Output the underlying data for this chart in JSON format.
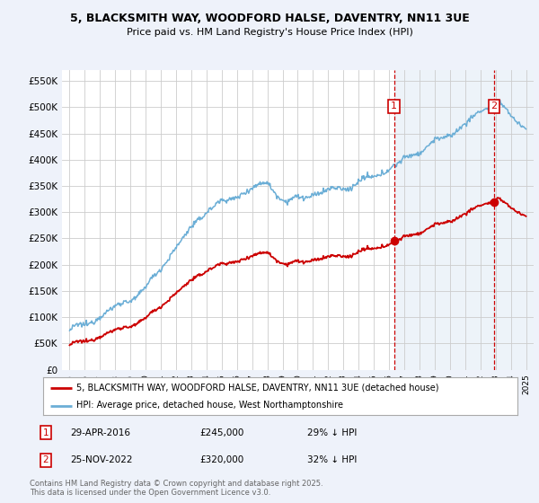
{
  "title1": "5, BLACKSMITH WAY, WOODFORD HALSE, DAVENTRY, NN11 3UE",
  "title2": "Price paid vs. HM Land Registry's House Price Index (HPI)",
  "ytick_vals": [
    0,
    50000,
    100000,
    150000,
    200000,
    250000,
    300000,
    350000,
    400000,
    450000,
    500000,
    550000
  ],
  "ylim": [
    0,
    570000
  ],
  "hpi_color": "#6baed6",
  "price_color": "#cc0000",
  "sale1_year": 2016.33,
  "sale1_price": 245000,
  "sale1_date": "29-APR-2016",
  "sale1_pct": "29% ↓ HPI",
  "sale2_year": 2022.9,
  "sale2_price": 320000,
  "sale2_date": "25-NOV-2022",
  "sale2_pct": "32% ↓ HPI",
  "legend_label1": "5, BLACKSMITH WAY, WOODFORD HALSE, DAVENTRY, NN11 3UE (detached house)",
  "legend_label2": "HPI: Average price, detached house, West Northamptonshire",
  "footnote": "Contains HM Land Registry data © Crown copyright and database right 2025.\nThis data is licensed under the Open Government Licence v3.0.",
  "bg_color": "#eef2fa",
  "plot_bg": "#ffffff",
  "grid_color": "#cccccc",
  "vline_color": "#cc0000",
  "highlight_bg": "#dce8f5"
}
